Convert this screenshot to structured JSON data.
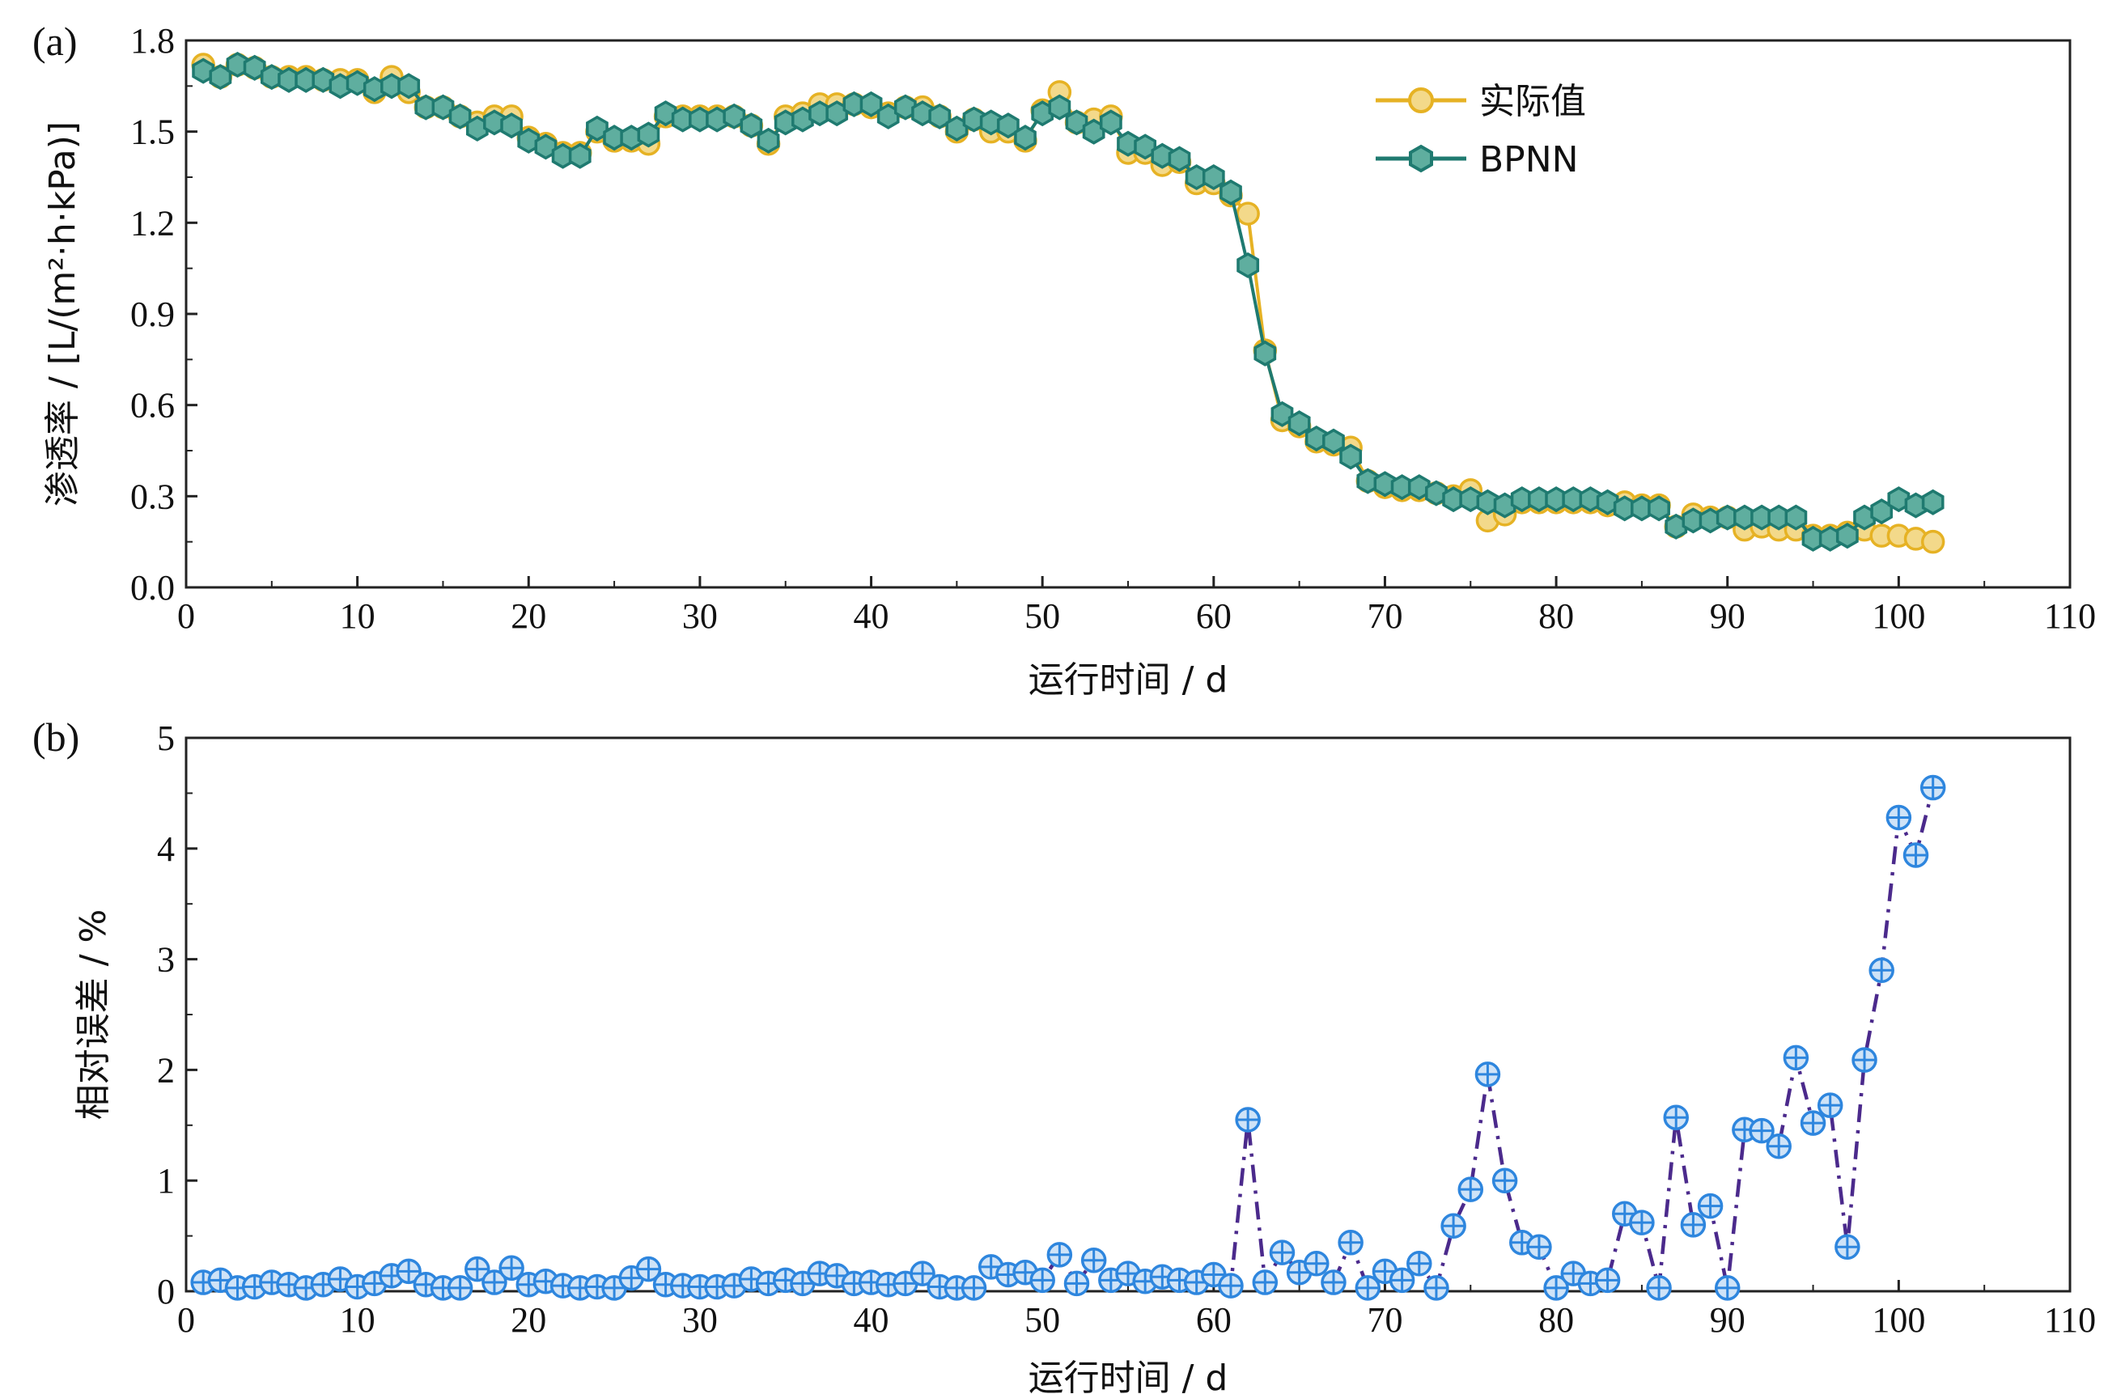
{
  "colors": {
    "actual": "#E6B224",
    "actual_fill": "#F3D98A",
    "bpnn": "#1F7A70",
    "bpnn_fill": "#5FAE9F",
    "error_line": "#4B2A8C",
    "error_marker": "#2E86DE",
    "error_marker_fill": "#CFE3F7"
  },
  "chart_data": [
    {
      "type": "line",
      "panel_label": "(a)",
      "xlabel": "运行时间 / d",
      "ylabel": "渗透率 / [L/(m²·h·kPa)]",
      "xlim": [
        0,
        110
      ],
      "ylim": [
        0,
        1.8
      ],
      "xticks": [
        "0",
        "10",
        "20",
        "30",
        "40",
        "50",
        "60",
        "70",
        "80",
        "90",
        "100",
        "110"
      ],
      "yticks": [
        "0.0",
        "0.3",
        "0.6",
        "0.9",
        "1.2",
        "1.5",
        "1.8"
      ],
      "legend_position": "top-right",
      "x": [
        1,
        2,
        3,
        4,
        5,
        6,
        7,
        8,
        9,
        10,
        11,
        12,
        13,
        14,
        15,
        16,
        17,
        18,
        19,
        20,
        21,
        22,
        23,
        24,
        25,
        26,
        27,
        28,
        29,
        30,
        31,
        32,
        33,
        34,
        35,
        36,
        37,
        38,
        39,
        40,
        41,
        42,
        43,
        44,
        45,
        46,
        47,
        48,
        49,
        50,
        51,
        52,
        53,
        54,
        55,
        56,
        57,
        58,
        59,
        60,
        61,
        62,
        63,
        64,
        65,
        66,
        67,
        68,
        69,
        70,
        71,
        72,
        73,
        74,
        75,
        76,
        77,
        78,
        79,
        80,
        81,
        82,
        83,
        84,
        85,
        86,
        87,
        88,
        89,
        90,
        91,
        92,
        93,
        94,
        95,
        96,
        97,
        98,
        99,
        100,
        101,
        102
      ],
      "series": [
        {
          "name": "实际值",
          "values": [
            1.72,
            1.68,
            1.72,
            1.71,
            1.68,
            1.68,
            1.68,
            1.67,
            1.67,
            1.67,
            1.63,
            1.68,
            1.63,
            1.58,
            1.58,
            1.55,
            1.53,
            1.55,
            1.55,
            1.48,
            1.46,
            1.43,
            1.43,
            1.5,
            1.47,
            1.47,
            1.46,
            1.55,
            1.55,
            1.55,
            1.55,
            1.55,
            1.52,
            1.46,
            1.55,
            1.56,
            1.59,
            1.59,
            1.59,
            1.58,
            1.56,
            1.58,
            1.58,
            1.55,
            1.5,
            1.54,
            1.5,
            1.5,
            1.47,
            1.57,
            1.63,
            1.53,
            1.54,
            1.55,
            1.43,
            1.43,
            1.39,
            1.4,
            1.33,
            1.33,
            1.29,
            1.23,
            0.78,
            0.55,
            0.53,
            0.48,
            0.47,
            0.46,
            0.35,
            0.33,
            0.32,
            0.32,
            0.31,
            0.3,
            0.32,
            0.22,
            0.24,
            0.28,
            0.28,
            0.28,
            0.28,
            0.28,
            0.27,
            0.28,
            0.27,
            0.27,
            0.2,
            0.24,
            0.23,
            0.23,
            0.19,
            0.2,
            0.19,
            0.19,
            0.17,
            0.17,
            0.18,
            0.19,
            0.17,
            0.17,
            0.16,
            0.15
          ]
        },
        {
          "name": "BPNN",
          "values": [
            1.7,
            1.68,
            1.72,
            1.71,
            1.68,
            1.67,
            1.67,
            1.67,
            1.65,
            1.66,
            1.64,
            1.65,
            1.65,
            1.58,
            1.58,
            1.55,
            1.51,
            1.53,
            1.52,
            1.47,
            1.45,
            1.42,
            1.42,
            1.51,
            1.48,
            1.48,
            1.49,
            1.56,
            1.54,
            1.54,
            1.54,
            1.55,
            1.52,
            1.47,
            1.53,
            1.54,
            1.56,
            1.56,
            1.59,
            1.59,
            1.55,
            1.58,
            1.56,
            1.55,
            1.51,
            1.54,
            1.53,
            1.52,
            1.48,
            1.56,
            1.58,
            1.53,
            1.5,
            1.53,
            1.46,
            1.45,
            1.42,
            1.41,
            1.35,
            1.35,
            1.3,
            1.06,
            0.77,
            0.57,
            0.54,
            0.49,
            0.48,
            0.43,
            0.35,
            0.34,
            0.33,
            0.33,
            0.31,
            0.29,
            0.29,
            0.28,
            0.27,
            0.29,
            0.29,
            0.29,
            0.29,
            0.29,
            0.28,
            0.26,
            0.26,
            0.26,
            0.2,
            0.22,
            0.22,
            0.23,
            0.23,
            0.23,
            0.23,
            0.23,
            0.16,
            0.16,
            0.17,
            0.23,
            0.25,
            0.29,
            0.27,
            0.28
          ]
        }
      ]
    },
    {
      "type": "line",
      "panel_label": "(b)",
      "xlabel": "运行时间 / d",
      "ylabel": "相对误差 / %",
      "xlim": [
        0,
        110
      ],
      "ylim": [
        0,
        5
      ],
      "xticks": [
        "0",
        "10",
        "20",
        "30",
        "40",
        "50",
        "60",
        "70",
        "80",
        "90",
        "100",
        "110"
      ],
      "yticks": [
        "0",
        "1",
        "2",
        "3",
        "4",
        "5"
      ],
      "x": [
        1,
        2,
        3,
        4,
        5,
        6,
        7,
        8,
        9,
        10,
        11,
        12,
        13,
        14,
        15,
        16,
        17,
        18,
        19,
        20,
        21,
        22,
        23,
        24,
        25,
        26,
        27,
        28,
        29,
        30,
        31,
        32,
        33,
        34,
        35,
        36,
        37,
        38,
        39,
        40,
        41,
        42,
        43,
        44,
        45,
        46,
        47,
        48,
        49,
        50,
        51,
        52,
        53,
        54,
        55,
        56,
        57,
        58,
        59,
        60,
        61,
        62,
        63,
        64,
        65,
        66,
        67,
        68,
        69,
        70,
        71,
        72,
        73,
        74,
        75,
        76,
        77,
        78,
        79,
        80,
        81,
        82,
        83,
        84,
        85,
        86,
        87,
        88,
        89,
        90,
        91,
        92,
        93,
        94,
        95,
        96,
        97,
        98,
        99,
        100,
        101,
        102
      ],
      "series": [
        {
          "values": [
            0.08,
            0.1,
            0.03,
            0.04,
            0.08,
            0.06,
            0.03,
            0.06,
            0.11,
            0.04,
            0.07,
            0.14,
            0.18,
            0.06,
            0.03,
            0.03,
            0.2,
            0.08,
            0.21,
            0.06,
            0.09,
            0.05,
            0.03,
            0.04,
            0.03,
            0.12,
            0.2,
            0.06,
            0.05,
            0.04,
            0.04,
            0.05,
            0.11,
            0.07,
            0.1,
            0.07,
            0.16,
            0.14,
            0.07,
            0.08,
            0.06,
            0.07,
            0.16,
            0.04,
            0.03,
            0.03,
            0.22,
            0.15,
            0.17,
            0.1,
            0.33,
            0.07,
            0.28,
            0.1,
            0.16,
            0.09,
            0.13,
            0.1,
            0.08,
            0.15,
            0.05,
            1.55,
            0.08,
            0.35,
            0.17,
            0.25,
            0.08,
            0.44,
            0.03,
            0.18,
            0.1,
            0.25,
            0.03,
            0.59,
            0.92,
            1.96,
            1.0,
            0.44,
            0.4,
            0.03,
            0.16,
            0.07,
            0.1,
            0.7,
            0.62,
            0.03,
            1.57,
            0.6,
            0.77,
            0.03,
            1.46,
            1.45,
            1.31,
            2.11,
            1.52,
            1.68,
            0.4,
            2.09,
            2.9,
            4.28,
            3.94,
            4.55
          ]
        }
      ]
    }
  ]
}
